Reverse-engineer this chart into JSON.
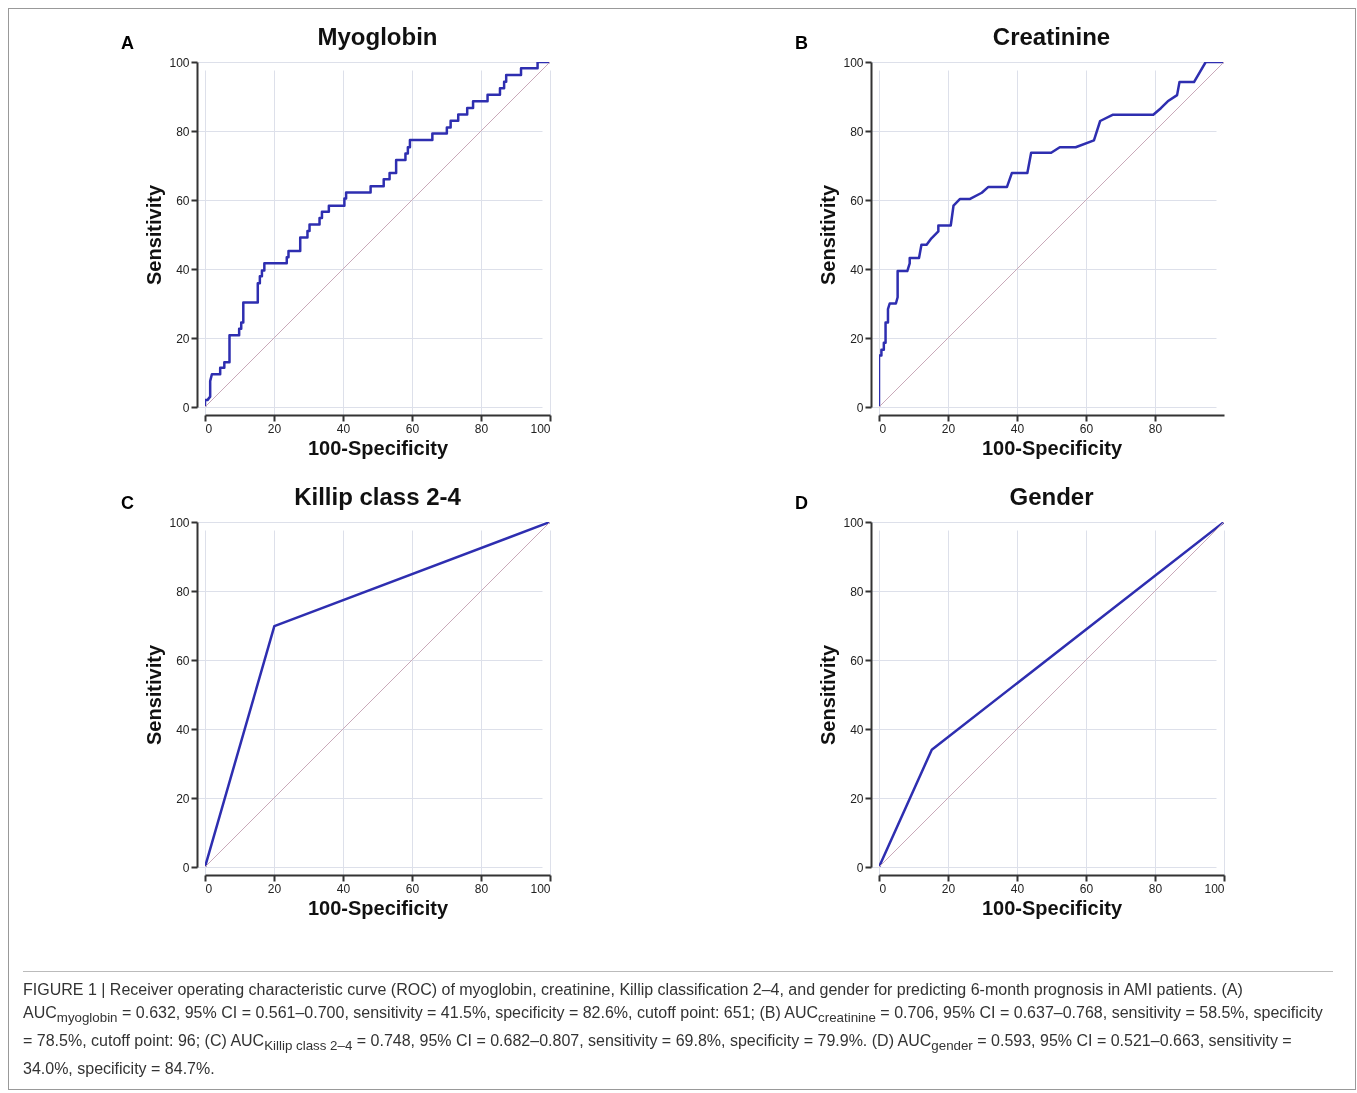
{
  "chart_data": [
    {
      "type": "line",
      "title": "Myoglobin",
      "xlabel": "100-Specificity",
      "ylabel": "Sensitivity",
      "xlim": [
        0,
        100
      ],
      "ylim": [
        0,
        100
      ],
      "xticks": [
        0,
        20,
        40,
        60,
        80,
        100
      ],
      "yticks": [
        0,
        20,
        40,
        60,
        80,
        100
      ],
      "grid": true,
      "annotations": [
        "A"
      ],
      "series": [
        {
          "color": "#2e2eb0",
          "x": [
            0,
            0,
            0.7,
            1.5,
            1.5,
            2,
            4.4,
            4.4,
            5.6,
            5.6,
            7.1,
            7.1,
            9.9,
            9.9,
            10.5,
            10.5,
            11.1,
            11.1,
            15.3,
            15.3,
            15.9,
            15.9,
            16.5,
            16.5,
            17.2,
            17.2,
            23.7,
            23.7,
            24.2,
            24.2,
            27.6,
            27.6,
            29.7,
            29.7,
            30.3,
            30.3,
            33.2,
            33.2,
            33.9,
            33.9,
            35.9,
            35.9,
            40.4,
            40.4,
            40.9,
            40.9,
            48,
            48,
            51.8,
            51.8,
            53.5,
            53.5,
            55.4,
            55.4,
            58.1,
            58.1,
            58.8,
            58.8,
            59.4,
            59.4,
            65.9,
            65.9,
            70.1,
            70.1,
            71.2,
            71.2,
            73.4,
            73.4,
            76,
            76,
            77.7,
            77.7,
            81.9,
            81.9,
            85.5,
            85.5,
            86.7,
            86.7,
            87.3,
            87.3,
            91.6,
            91.6,
            96.4,
            96.4,
            100
          ],
          "values": [
            0,
            2,
            2,
            3,
            7.5,
            9.5,
            9.5,
            11.4,
            11.4,
            13,
            13,
            20.8,
            20.8,
            22.7,
            22.7,
            24.5,
            24.5,
            30.3,
            30.3,
            35.9,
            35.9,
            37.9,
            37.9,
            39.6,
            39.6,
            41.7,
            41.7,
            43.4,
            43.4,
            45.2,
            45.2,
            49.1,
            49.1,
            51,
            51,
            52.9,
            52.9,
            54.8,
            54.8,
            56.6,
            56.6,
            58.3,
            58.3,
            60.4,
            60.4,
            62.2,
            62.2,
            64,
            64,
            66,
            66,
            67.8,
            67.8,
            71.6,
            71.6,
            73.5,
            73.5,
            75.3,
            75.3,
            77.4,
            77.4,
            79.3,
            79.3,
            81,
            81,
            83,
            83,
            84.8,
            84.8,
            86.7,
            86.7,
            88.6,
            88.6,
            90.5,
            90.5,
            92.4,
            92.4,
            94.3,
            94.3,
            96.2,
            96.2,
            98.2,
            98.2,
            100,
            100
          ]
        },
        {
          "color": "#c9a9b9",
          "x": [
            0,
            100
          ],
          "values": [
            0,
            100
          ]
        }
      ]
    },
    {
      "type": "line",
      "title": "Creatinine",
      "xlabel": "100-Specificity",
      "ylabel": "Sensitivity",
      "xlim": [
        0,
        100
      ],
      "ylim": [
        0,
        100
      ],
      "xticks": [
        0,
        20,
        40,
        60,
        80
      ],
      "yticks": [
        0,
        20,
        40,
        60,
        80,
        100
      ],
      "grid": true,
      "annotations": [
        "B"
      ],
      "series": [
        {
          "color": "#2e2eb0",
          "x": [
            0,
            0,
            0.7,
            0.7,
            1.4,
            1.4,
            1.9,
            1.9,
            2.6,
            2.6,
            3.1,
            4.9,
            5.4,
            5.4,
            8.2,
            8.9,
            8.9,
            11.6,
            12.3,
            13.8,
            15.2,
            17.2,
            17.2,
            20.8,
            21.6,
            23.5,
            26.4,
            29.8,
            31.7,
            37.1,
            38.5,
            43,
            44.1,
            49.9,
            52.4,
            57,
            62.3,
            64.1,
            67.7,
            79.5,
            81.7,
            83.7,
            86.4,
            87.1,
            91.3,
            94.7,
            100
          ],
          "values": [
            0,
            14.9,
            14.9,
            16.6,
            16.6,
            18.6,
            18.6,
            24.5,
            24.5,
            28.4,
            30,
            30,
            31.8,
            39.4,
            39.4,
            41.6,
            43.2,
            43.2,
            47,
            47,
            48.9,
            50.9,
            52.6,
            52.6,
            58.4,
            60.3,
            60.3,
            62.1,
            63.8,
            63.8,
            67.8,
            67.8,
            73.7,
            73.7,
            75.3,
            75.3,
            77.3,
            82.9,
            84.7,
            84.7,
            86.6,
            88.6,
            90.4,
            94.2,
            94.2,
            100,
            100
          ]
        },
        {
          "color": "#c9a9b9",
          "x": [
            0,
            100
          ],
          "values": [
            0,
            100
          ]
        }
      ]
    },
    {
      "type": "line",
      "title": "Killip class 2-4",
      "xlabel": "100-Specificity",
      "ylabel": "Sensitivity",
      "xlim": [
        0,
        100
      ],
      "ylim": [
        0,
        100
      ],
      "xticks": [
        0,
        20,
        40,
        60,
        80,
        100
      ],
      "yticks": [
        0,
        20,
        40,
        60,
        80,
        100
      ],
      "grid": true,
      "annotations": [
        "C"
      ],
      "series": [
        {
          "color": "#2e2eb0",
          "x": [
            0,
            20.1,
            100
          ],
          "values": [
            0,
            69.8,
            100
          ]
        },
        {
          "color": "#c9a9b9",
          "x": [
            0,
            100
          ],
          "values": [
            0,
            100
          ]
        }
      ]
    },
    {
      "type": "line",
      "title": "Gender",
      "xlabel": "100-Specificity",
      "ylabel": "Sensitivity",
      "xlim": [
        0,
        100
      ],
      "ylim": [
        0,
        100
      ],
      "xticks": [
        0,
        20,
        40,
        60,
        80,
        100
      ],
      "yticks": [
        0,
        20,
        40,
        60,
        80,
        100
      ],
      "grid": true,
      "annotations": [
        "D",
        "FIGURE 1 | Receiver operating characteristic curve (ROC) of myoglobin, creatinine, Killip classification 2–4, and gender for predicting 6-month prognosis in AMI patients. (A) AUC$_{myoglobin}$ = 0.632, 95% CI = 0.561–0.700, sensitivity = 41.5%, specificity = 82.6%, cutoff point: 651; (B) AUC$_{creatinine}$ = 0.706, 95% CI = 0.637–0.768, sensitivity = 58.5%, specificity = 78.5%, cutoff point: 96; (C) AUC$_{Killip class 2–4}$ = 0.748, 95% CI = 0.682–0.807, sensitivity = 69.8%, specificity = 79.9%. (D) AUC$_{gender}$ = 0.593, 95% CI = 0.521–0.663, sensitivity = 34.0%, specificity = 84.7%."
      ],
      "series": [
        {
          "color": "#2e2eb0",
          "x": [
            0,
            15.3,
            100
          ],
          "values": [
            0,
            34,
            100
          ]
        },
        {
          "color": "#c9a9b9",
          "x": [
            0,
            100
          ],
          "values": [
            0,
            100
          ]
        }
      ]
    }
  ]
}
